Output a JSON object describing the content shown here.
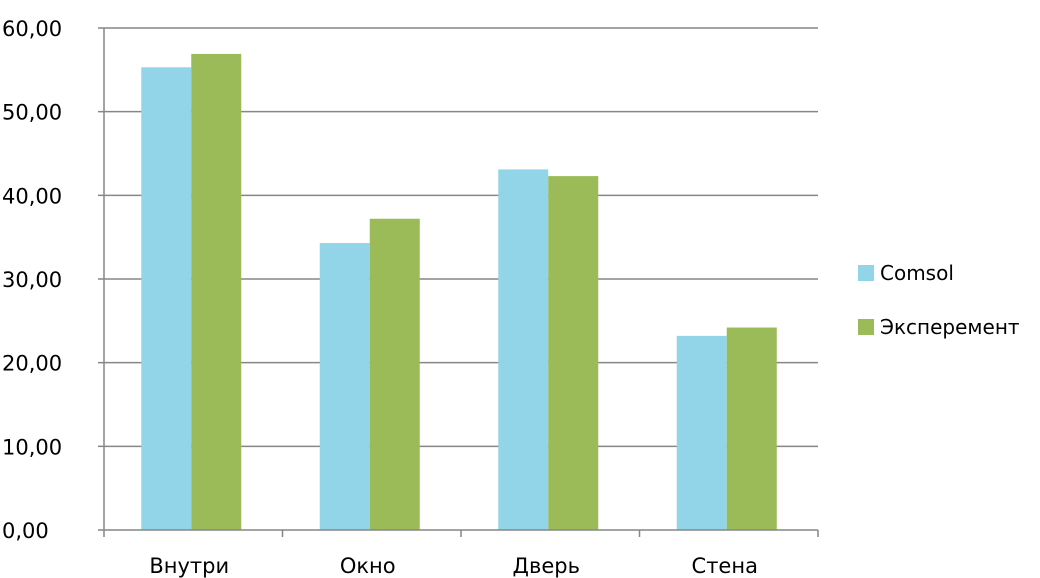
{
  "chart_data": {
    "type": "bar",
    "categories": [
      "Внутри",
      "Окно",
      "Дверь",
      "Стена"
    ],
    "series": [
      {
        "name": "Comsol",
        "values": [
          55.3,
          34.3,
          43.1,
          23.2
        ],
        "color": "#93D5E8"
      },
      {
        "name": "Эксперемент",
        "values": [
          56.9,
          37.2,
          42.3,
          24.2
        ],
        "color": "#9BBB59"
      }
    ],
    "yticks": [
      "0,00",
      "10,00",
      "20,00",
      "30,00",
      "40,00",
      "50,00",
      "60,00"
    ],
    "ylim": [
      0,
      60
    ],
    "ystep": 10,
    "grid": true,
    "gridline_color": "#868686",
    "axis_color": "#868686",
    "legend_position": "right",
    "title": "",
    "xlabel": "",
    "ylabel": ""
  }
}
